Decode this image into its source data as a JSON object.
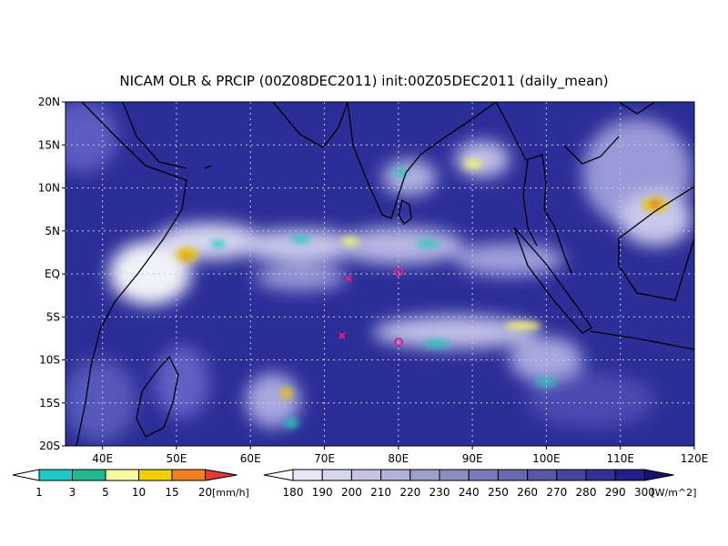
{
  "title": "NICAM OLR & PRCIP (00Z08DEC2011) init:00Z05DEC2011 (daily_mean)",
  "lat_labels": [
    "20N",
    "15N",
    "10N",
    "5N",
    "EQ",
    "5S",
    "10S",
    "15S",
    "20S"
  ],
  "lon_labels": [
    "40E",
    "50E",
    "60E",
    "70E",
    "80E",
    "90E",
    "100E",
    "110E",
    "120E"
  ],
  "precip_colorbar": {
    "labels": [
      "1",
      "3",
      "5",
      "10",
      "15",
      "20"
    ],
    "unit": "[mm/h]"
  },
  "olr_colorbar": {
    "labels": [
      "180",
      "190",
      "200",
      "210",
      "220",
      "230",
      "240",
      "250",
      "260",
      "270",
      "280",
      "290",
      "300"
    ],
    "unit": "[W/m^2]"
  }
}
